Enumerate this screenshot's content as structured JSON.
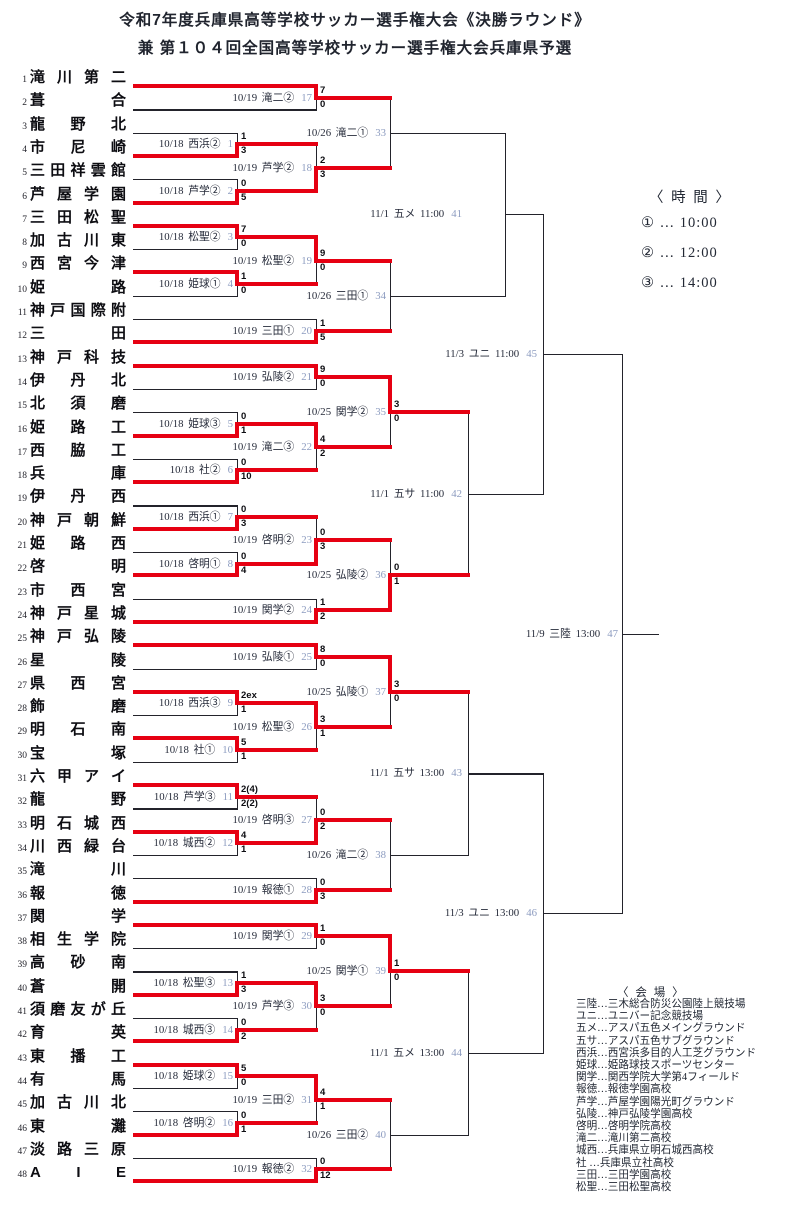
{
  "title": {
    "line1": "令和7年度兵庫県高等学校サッカー選手権大会《決勝ラウンド》",
    "line2": "兼 第１０４回全国高等学校サッカー選手権大会兵庫県予選"
  },
  "time_legend": {
    "header": "〈 時  間 〉",
    "items": [
      "① … 10:00",
      "② … 12:00",
      "③ … 14:00"
    ]
  },
  "venue_legend": {
    "header": "〈 会  場 〉",
    "items": [
      "三陸…三木総合防災公園陸上競技場",
      "ユニ…ユニバー記念競技場",
      "五メ…アスパ五色メイングラウンド",
      "五サ…アスパ五色サブグラウンド",
      "西浜…西宮浜多目的人工芝グラウンド",
      "姫球…姫路球技スポーツセンター",
      "関学…関西学院大学第4フィールド",
      "報徳…報徳学園高校",
      "芦学…芦屋学園陽光町グラウンド",
      "弘陵…神戸弘陵学園高校",
      "啓明…啓明学院高校",
      "滝二…滝川第二高校",
      "城西…兵庫県立明石城西高校",
      "社 …兵庫県立社高校",
      "三田…三田学園高校",
      "松聖…三田松聖高校"
    ]
  },
  "teams": [
    {
      "n": 1,
      "name": "滝川第二"
    },
    {
      "n": 2,
      "name": "葺合"
    },
    {
      "n": 3,
      "name": "龍野北"
    },
    {
      "n": 4,
      "name": "市尼崎"
    },
    {
      "n": 5,
      "name": "三田祥雲館"
    },
    {
      "n": 6,
      "name": "芦屋学園"
    },
    {
      "n": 7,
      "name": "三田松聖"
    },
    {
      "n": 8,
      "name": "加古川東"
    },
    {
      "n": 9,
      "name": "西宮今津"
    },
    {
      "n": 10,
      "name": "姫路"
    },
    {
      "n": 11,
      "name": "神戸国際附"
    },
    {
      "n": 12,
      "name": "三田"
    },
    {
      "n": 13,
      "name": "神戸科技"
    },
    {
      "n": 14,
      "name": "伊丹北"
    },
    {
      "n": 15,
      "name": "北須磨"
    },
    {
      "n": 16,
      "name": "姫路工"
    },
    {
      "n": 17,
      "name": "西脇工"
    },
    {
      "n": 18,
      "name": "兵庫"
    },
    {
      "n": 19,
      "name": "伊丹西"
    },
    {
      "n": 20,
      "name": "神戸朝鮮"
    },
    {
      "n": 21,
      "name": "姫路西"
    },
    {
      "n": 22,
      "name": "啓明"
    },
    {
      "n": 23,
      "name": "市西宮"
    },
    {
      "n": 24,
      "name": "神戸星城"
    },
    {
      "n": 25,
      "name": "神戸弘陵"
    },
    {
      "n": 26,
      "name": "星陵"
    },
    {
      "n": 27,
      "name": "県西宮"
    },
    {
      "n": 28,
      "name": "飾磨"
    },
    {
      "n": 29,
      "name": "明石南"
    },
    {
      "n": 30,
      "name": "宝塚"
    },
    {
      "n": 31,
      "name": "六甲アイ"
    },
    {
      "n": 32,
      "name": "龍野"
    },
    {
      "n": 33,
      "name": "明石城西"
    },
    {
      "n": 34,
      "name": "川西緑台"
    },
    {
      "n": 35,
      "name": "滝川"
    },
    {
      "n": 36,
      "name": "報徳"
    },
    {
      "n": 37,
      "name": "関学"
    },
    {
      "n": 38,
      "name": "相生学院"
    },
    {
      "n": 39,
      "name": "高砂南"
    },
    {
      "n": 40,
      "name": "蒼開"
    },
    {
      "n": 41,
      "name": "須磨友が丘"
    },
    {
      "n": 42,
      "name": "育英"
    },
    {
      "n": 43,
      "name": "東播工"
    },
    {
      "n": 44,
      "name": "有馬"
    },
    {
      "n": 45,
      "name": "加古川北"
    },
    {
      "n": 46,
      "name": "東灘"
    },
    {
      "n": 47,
      "name": "淡路三原"
    },
    {
      "n": 48,
      "name": "AIE"
    }
  ],
  "matches": [
    {
      "id": 1,
      "round": "R1",
      "date": "10/18",
      "venue": "西浜②",
      "top": {
        "t": 3
      },
      "bottom": {
        "t": 4
      },
      "s_top": "1",
      "s_bottom": "3",
      "winner": "bottom"
    },
    {
      "id": 2,
      "round": "R1",
      "date": "10/18",
      "venue": "芦学②",
      "top": {
        "t": 5
      },
      "bottom": {
        "t": 6
      },
      "s_top": "0",
      "s_bottom": "5",
      "winner": "bottom"
    },
    {
      "id": 3,
      "round": "R1",
      "date": "10/18",
      "venue": "松聖②",
      "top": {
        "t": 7
      },
      "bottom": {
        "t": 8
      },
      "s_top": "7",
      "s_bottom": "0",
      "winner": "top"
    },
    {
      "id": 4,
      "round": "R1",
      "date": "10/18",
      "venue": "姫球①",
      "top": {
        "t": 9
      },
      "bottom": {
        "t": 10
      },
      "s_top": "1",
      "s_bottom": "0",
      "winner": "top"
    },
    {
      "id": 5,
      "round": "R1",
      "date": "10/18",
      "venue": "姫球③",
      "top": {
        "t": 15
      },
      "bottom": {
        "t": 16
      },
      "s_top": "0",
      "s_bottom": "1",
      "winner": "bottom"
    },
    {
      "id": 6,
      "round": "R1",
      "date": "10/18",
      "venue": "社②",
      "top": {
        "t": 17
      },
      "bottom": {
        "t": 18
      },
      "s_top": "0",
      "s_bottom": "10",
      "winner": "bottom"
    },
    {
      "id": 7,
      "round": "R1",
      "date": "10/18",
      "venue": "西浜①",
      "top": {
        "t": 19
      },
      "bottom": {
        "t": 20
      },
      "s_top": "0",
      "s_bottom": "3",
      "winner": "bottom"
    },
    {
      "id": 8,
      "round": "R1",
      "date": "10/18",
      "venue": "啓明①",
      "top": {
        "t": 21
      },
      "bottom": {
        "t": 22
      },
      "s_top": "0",
      "s_bottom": "4",
      "winner": "bottom"
    },
    {
      "id": 9,
      "round": "R1",
      "date": "10/18",
      "venue": "西浜③",
      "top": {
        "t": 27
      },
      "bottom": {
        "t": 28
      },
      "s_top": "2ex",
      "s_bottom": "1",
      "winner": "top"
    },
    {
      "id": 10,
      "round": "R1",
      "date": "10/18",
      "venue": "社①",
      "top": {
        "t": 29
      },
      "bottom": {
        "t": 30
      },
      "s_top": "5",
      "s_bottom": "1",
      "winner": "top"
    },
    {
      "id": 11,
      "round": "R1",
      "date": "10/18",
      "venue": "芦学③",
      "top": {
        "t": 31
      },
      "bottom": {
        "t": 32
      },
      "s_top": "2(4)",
      "s_bottom": "2(2)",
      "winner": "top"
    },
    {
      "id": 12,
      "round": "R1",
      "date": "10/18",
      "venue": "城西②",
      "top": {
        "t": 33
      },
      "bottom": {
        "t": 34
      },
      "s_top": "4",
      "s_bottom": "1",
      "winner": "top"
    },
    {
      "id": 13,
      "round": "R1",
      "date": "10/18",
      "venue": "松聖③",
      "top": {
        "t": 39
      },
      "bottom": {
        "t": 40
      },
      "s_top": "1",
      "s_bottom": "3",
      "winner": "bottom"
    },
    {
      "id": 14,
      "round": "R1",
      "date": "10/18",
      "venue": "城西③",
      "top": {
        "t": 41
      },
      "bottom": {
        "t": 42
      },
      "s_top": "0",
      "s_bottom": "2",
      "winner": "bottom"
    },
    {
      "id": 15,
      "round": "R1",
      "date": "10/18",
      "venue": "姫球②",
      "top": {
        "t": 43
      },
      "bottom": {
        "t": 44
      },
      "s_top": "5",
      "s_bottom": "0",
      "winner": "top"
    },
    {
      "id": 16,
      "round": "R1",
      "date": "10/18",
      "venue": "啓明②",
      "top": {
        "t": 45
      },
      "bottom": {
        "t": 46
      },
      "s_top": "0",
      "s_bottom": "1",
      "winner": "bottom"
    },
    {
      "id": 17,
      "round": "R2",
      "date": "10/19",
      "venue": "滝二②",
      "top": {
        "t": 1
      },
      "bottom": {
        "t": 2
      },
      "s_top": "7",
      "s_bottom": "0",
      "winner": "top"
    },
    {
      "id": 18,
      "round": "R2",
      "date": "10/19",
      "venue": "芦学②",
      "top": {
        "m": 1
      },
      "bottom": {
        "m": 2
      },
      "s_top": "2",
      "s_bottom": "3",
      "winner": "bottom"
    },
    {
      "id": 19,
      "round": "R2",
      "date": "10/19",
      "venue": "松聖②",
      "top": {
        "m": 3
      },
      "bottom": {
        "m": 4
      },
      "s_top": "9",
      "s_bottom": "0",
      "winner": "top"
    },
    {
      "id": 20,
      "round": "R2",
      "date": "10/19",
      "venue": "三田①",
      "top": {
        "t": 11
      },
      "bottom": {
        "t": 12
      },
      "s_top": "1",
      "s_bottom": "5",
      "winner": "bottom"
    },
    {
      "id": 21,
      "round": "R2",
      "date": "10/19",
      "venue": "弘陵②",
      "top": {
        "t": 13
      },
      "bottom": {
        "t": 14
      },
      "s_top": "9",
      "s_bottom": "0",
      "winner": "top"
    },
    {
      "id": 22,
      "round": "R2",
      "date": "10/19",
      "venue": "滝二③",
      "top": {
        "m": 5
      },
      "bottom": {
        "m": 6
      },
      "s_top": "4",
      "s_bottom": "2",
      "winner": "top"
    },
    {
      "id": 23,
      "round": "R2",
      "date": "10/19",
      "venue": "啓明②",
      "top": {
        "m": 7
      },
      "bottom": {
        "m": 8
      },
      "s_top": "0",
      "s_bottom": "3",
      "winner": "bottom"
    },
    {
      "id": 24,
      "round": "R2",
      "date": "10/19",
      "venue": "関学②",
      "top": {
        "t": 23
      },
      "bottom": {
        "t": 24
      },
      "s_top": "1",
      "s_bottom": "2",
      "winner": "bottom"
    },
    {
      "id": 25,
      "round": "R2",
      "date": "10/19",
      "venue": "弘陵①",
      "top": {
        "t": 25
      },
      "bottom": {
        "t": 26
      },
      "s_top": "8",
      "s_bottom": "0",
      "winner": "top"
    },
    {
      "id": 26,
      "round": "R2",
      "date": "10/19",
      "venue": "松聖③",
      "top": {
        "m": 9
      },
      "bottom": {
        "m": 10
      },
      "s_top": "3",
      "s_bottom": "1",
      "winner": "top"
    },
    {
      "id": 27,
      "round": "R2",
      "date": "10/19",
      "venue": "啓明③",
      "top": {
        "m": 11
      },
      "bottom": {
        "m": 12
      },
      "s_top": "0",
      "s_bottom": "2",
      "winner": "bottom"
    },
    {
      "id": 28,
      "round": "R2",
      "date": "10/19",
      "venue": "報徳①",
      "top": {
        "t": 35
      },
      "bottom": {
        "t": 36
      },
      "s_top": "0",
      "s_bottom": "3",
      "winner": "bottom"
    },
    {
      "id": 29,
      "round": "R2",
      "date": "10/19",
      "venue": "関学①",
      "top": {
        "t": 37
      },
      "bottom": {
        "t": 38
      },
      "s_top": "1",
      "s_bottom": "0",
      "winner": "top"
    },
    {
      "id": 30,
      "round": "R2",
      "date": "10/19",
      "venue": "芦学③",
      "top": {
        "m": 13
      },
      "bottom": {
        "m": 14
      },
      "s_top": "3",
      "s_bottom": "0",
      "winner": "top"
    },
    {
      "id": 31,
      "round": "R2",
      "date": "10/19",
      "venue": "三田②",
      "top": {
        "m": 15
      },
      "bottom": {
        "m": 16
      },
      "s_top": "4",
      "s_bottom": "1",
      "winner": "top"
    },
    {
      "id": 32,
      "round": "R2",
      "date": "10/19",
      "venue": "報徳②",
      "top": {
        "t": 47
      },
      "bottom": {
        "t": 48
      },
      "s_top": "0",
      "s_bottom": "12",
      "winner": "bottom"
    },
    {
      "id": 33,
      "round": "R3",
      "date": "10/26",
      "venue": "滝二①",
      "top": {
        "m": 17
      },
      "bottom": {
        "m": 18
      }
    },
    {
      "id": 34,
      "round": "R3",
      "date": "10/26",
      "venue": "三田①",
      "top": {
        "m": 19
      },
      "bottom": {
        "m": 20
      }
    },
    {
      "id": 35,
      "round": "R3",
      "date": "10/25",
      "venue": "関学②",
      "top": {
        "m": 21
      },
      "bottom": {
        "m": 22
      },
      "s_top": "3",
      "s_bottom": "0",
      "winner": "top"
    },
    {
      "id": 36,
      "round": "R3",
      "date": "10/25",
      "venue": "弘陵②",
      "top": {
        "m": 23
      },
      "bottom": {
        "m": 24
      },
      "s_top": "0",
      "s_bottom": "1",
      "winner": "bottom"
    },
    {
      "id": 37,
      "round": "R3",
      "date": "10/25",
      "venue": "弘陵①",
      "top": {
        "m": 25
      },
      "bottom": {
        "m": 26
      },
      "s_top": "3",
      "s_bottom": "0",
      "winner": "top"
    },
    {
      "id": 38,
      "round": "R3",
      "date": "10/26",
      "venue": "滝二②",
      "top": {
        "m": 27
      },
      "bottom": {
        "m": 28
      }
    },
    {
      "id": 39,
      "round": "R3",
      "date": "10/25",
      "venue": "関学①",
      "top": {
        "m": 29
      },
      "bottom": {
        "m": 30
      },
      "s_top": "1",
      "s_bottom": "0",
      "winner": "top"
    },
    {
      "id": 40,
      "round": "R3",
      "date": "10/26",
      "venue": "三田②",
      "top": {
        "m": 31
      },
      "bottom": {
        "m": 32
      }
    },
    {
      "id": 41,
      "round": "QF",
      "date": "11/1",
      "venue": "五メ",
      "time": "11:00",
      "top": {
        "m": 33
      },
      "bottom": {
        "m": 34
      }
    },
    {
      "id": 42,
      "round": "QF",
      "date": "11/1",
      "venue": "五サ",
      "time": "11:00",
      "top": {
        "m": 35
      },
      "bottom": {
        "m": 36
      }
    },
    {
      "id": 43,
      "round": "QF",
      "date": "11/1",
      "venue": "五サ",
      "time": "13:00",
      "top": {
        "m": 37
      },
      "bottom": {
        "m": 38
      }
    },
    {
      "id": 44,
      "round": "QF",
      "date": "11/1",
      "venue": "五メ",
      "time": "13:00",
      "top": {
        "m": 39
      },
      "bottom": {
        "m": 40
      }
    },
    {
      "id": 45,
      "round": "SF",
      "date": "11/3",
      "venue": "ユニ",
      "time": "11:00",
      "top": {
        "m": 41
      },
      "bottom": {
        "m": 42
      }
    },
    {
      "id": 46,
      "round": "SF",
      "date": "11/3",
      "venue": "ユニ",
      "time": "13:00",
      "top": {
        "m": 43
      },
      "bottom": {
        "m": 44
      }
    },
    {
      "id": 47,
      "round": "F",
      "date": "11/9",
      "venue": "三陸",
      "time": "13:00",
      "top": {
        "m": 45
      },
      "bottom": {
        "m": 46
      }
    }
  ],
  "colors": {
    "winner_path": "#e60012",
    "bracket_line": "#23232b",
    "match_number": "#8d9cc0"
  }
}
